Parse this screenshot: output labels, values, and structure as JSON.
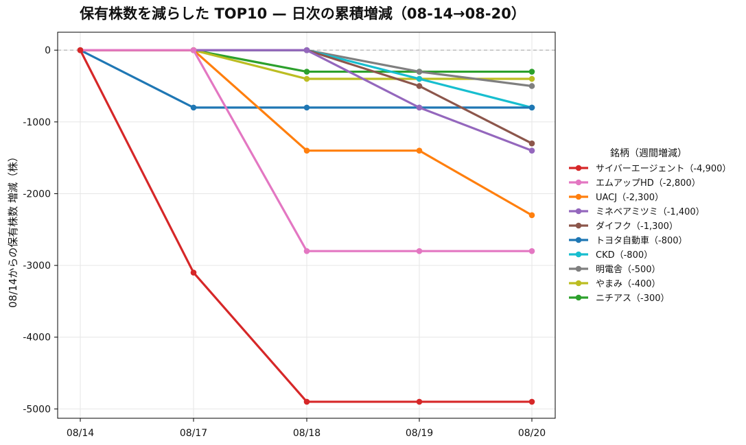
{
  "chart_data": {
    "type": "line",
    "title": "保有株数を減らした TOP10 — 日次の累積増減（08-14→08-20）",
    "xlabel": "",
    "ylabel": "08/14からの保有株数 増減（株）",
    "x": [
      "08/14",
      "08/17",
      "08/18",
      "08/19",
      "08/20"
    ],
    "y_ticks": [
      0,
      -1000,
      -2000,
      -3000,
      -4000,
      -5000
    ],
    "y_tick_labels": [
      "0",
      "-1000",
      "-2000",
      "-3000",
      "-4000",
      "-5000"
    ],
    "ylim": [
      -5130,
      250
    ],
    "grid": true,
    "zero_line": {
      "value": 0,
      "style": "dashed",
      "color": "#b0b0b0"
    },
    "legend": {
      "title": "銘柄（週間増減）",
      "placement": "right"
    },
    "series": [
      {
        "name": "サイバーエージェント（-4,900）",
        "color": "#d62728",
        "values": [
          0,
          -3100,
          -4900,
          -4900,
          -4900
        ]
      },
      {
        "name": "エムアップHD（-2,800）",
        "color": "#e377c2",
        "values": [
          0,
          0,
          -2800,
          -2800,
          -2800
        ]
      },
      {
        "name": "UACJ（-2,300）",
        "color": "#ff7f0e",
        "values": [
          0,
          0,
          -1400,
          -1400,
          -2300
        ]
      },
      {
        "name": "ミネベアミツミ（-1,400）",
        "color": "#9467bd",
        "values": [
          0,
          0,
          0,
          -800,
          -1400
        ]
      },
      {
        "name": "ダイフク（-1,300）",
        "color": "#8c564b",
        "values": [
          0,
          0,
          0,
          -500,
          -1300
        ]
      },
      {
        "name": "トヨタ自動車（-800）",
        "color": "#1f77b4",
        "values": [
          0,
          -800,
          -800,
          -800,
          -800
        ]
      },
      {
        "name": "CKD（-800）",
        "color": "#17becf",
        "values": [
          0,
          0,
          0,
          -400,
          -800
        ]
      },
      {
        "name": "明電舎（-500）",
        "color": "#7f7f7f",
        "values": [
          0,
          0,
          0,
          -300,
          -500
        ]
      },
      {
        "name": "やまみ（-400）",
        "color": "#bcbd22",
        "values": [
          0,
          0,
          -400,
          -400,
          -400
        ]
      },
      {
        "name": "ニチアス（-300）",
        "color": "#2ca02c",
        "values": [
          0,
          0,
          -300,
          -300,
          -300
        ]
      }
    ]
  }
}
